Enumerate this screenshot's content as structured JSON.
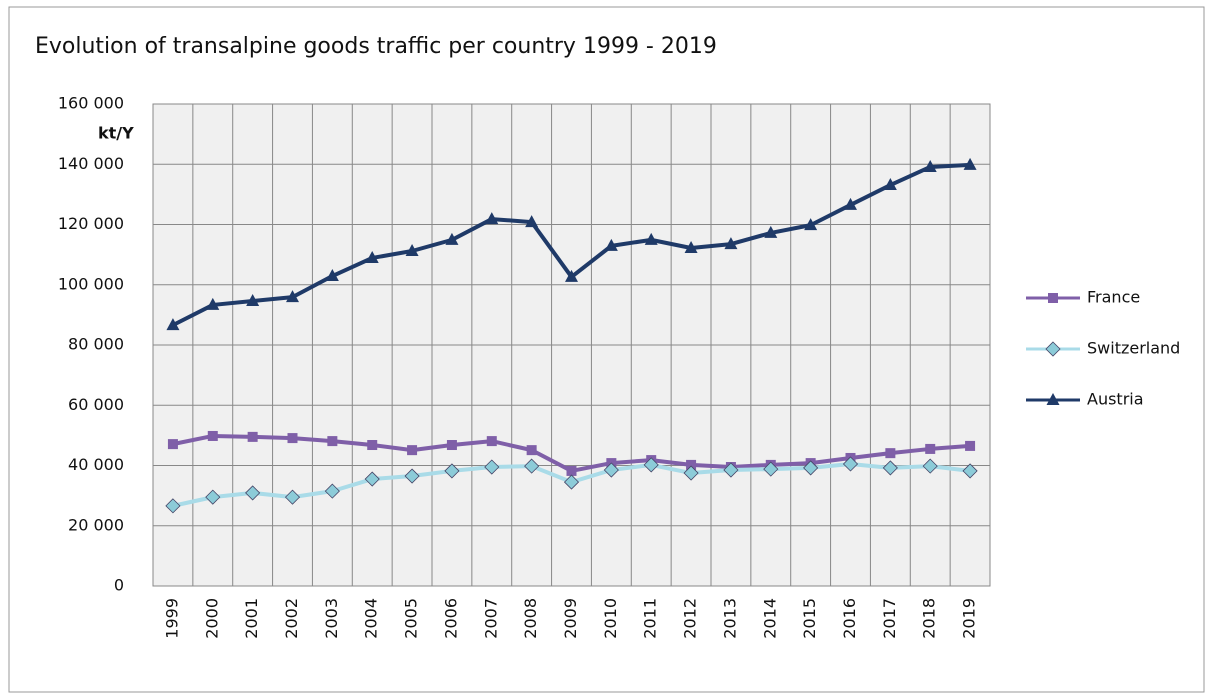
{
  "chart_data": {
    "type": "line",
    "title": "Evolution of transalpine goods traffic per country 1999  - 2019",
    "ylabel": "kt/Y",
    "categories": [
      "1999",
      "2000",
      "2001",
      "2002",
      "2003",
      "2004",
      "2005",
      "2006",
      "2007",
      "2008",
      "2009",
      "2010",
      "2011",
      "2012",
      "2013",
      "2014",
      "2015",
      "2016",
      "2017",
      "2018",
      "2019"
    ],
    "series": [
      {
        "name": "France",
        "color": "#7f5fa8",
        "marker": "square",
        "values": [
          47100,
          49800,
          49500,
          49100,
          48100,
          46800,
          45100,
          46800,
          48100,
          45100,
          38200,
          40800,
          41800,
          40200,
          39500,
          40200,
          40800,
          42500,
          44100,
          45500,
          46500
        ]
      },
      {
        "name": "Switzerland",
        "color": "#a9dbe8",
        "marker": "diamond",
        "values": [
          26600,
          29500,
          30900,
          29500,
          31500,
          35500,
          36500,
          38200,
          39500,
          39800,
          34500,
          38500,
          40200,
          37500,
          38500,
          38800,
          39200,
          40500,
          39200,
          39800,
          38200
        ]
      },
      {
        "name": "Austria",
        "color": "#1f3a68",
        "marker": "triangle",
        "values": [
          86600,
          93300,
          94600,
          95900,
          102900,
          108900,
          111200,
          114900,
          121800,
          120800,
          102600,
          112900,
          114900,
          112200,
          113500,
          117200,
          119800,
          126500,
          133100,
          139100,
          139800
        ]
      }
    ],
    "ylim": [
      0,
      160000
    ],
    "yticks": [
      0,
      {
        "value": 20000,
        "label": "20 000"
      },
      {
        "value": 40000,
        "label": "40 000"
      },
      {
        "value": 60000,
        "label": "60 000"
      },
      {
        "value": 80000,
        "label": "80 000"
      },
      {
        "value": 100000,
        "label": "100 000"
      },
      {
        "value": 120000,
        "label": "120 000"
      },
      {
        "value": 140000,
        "label": "140 000"
      },
      {
        "value": 160000,
        "label": "160 000"
      }
    ],
    "grid": true,
    "legend": "right"
  }
}
